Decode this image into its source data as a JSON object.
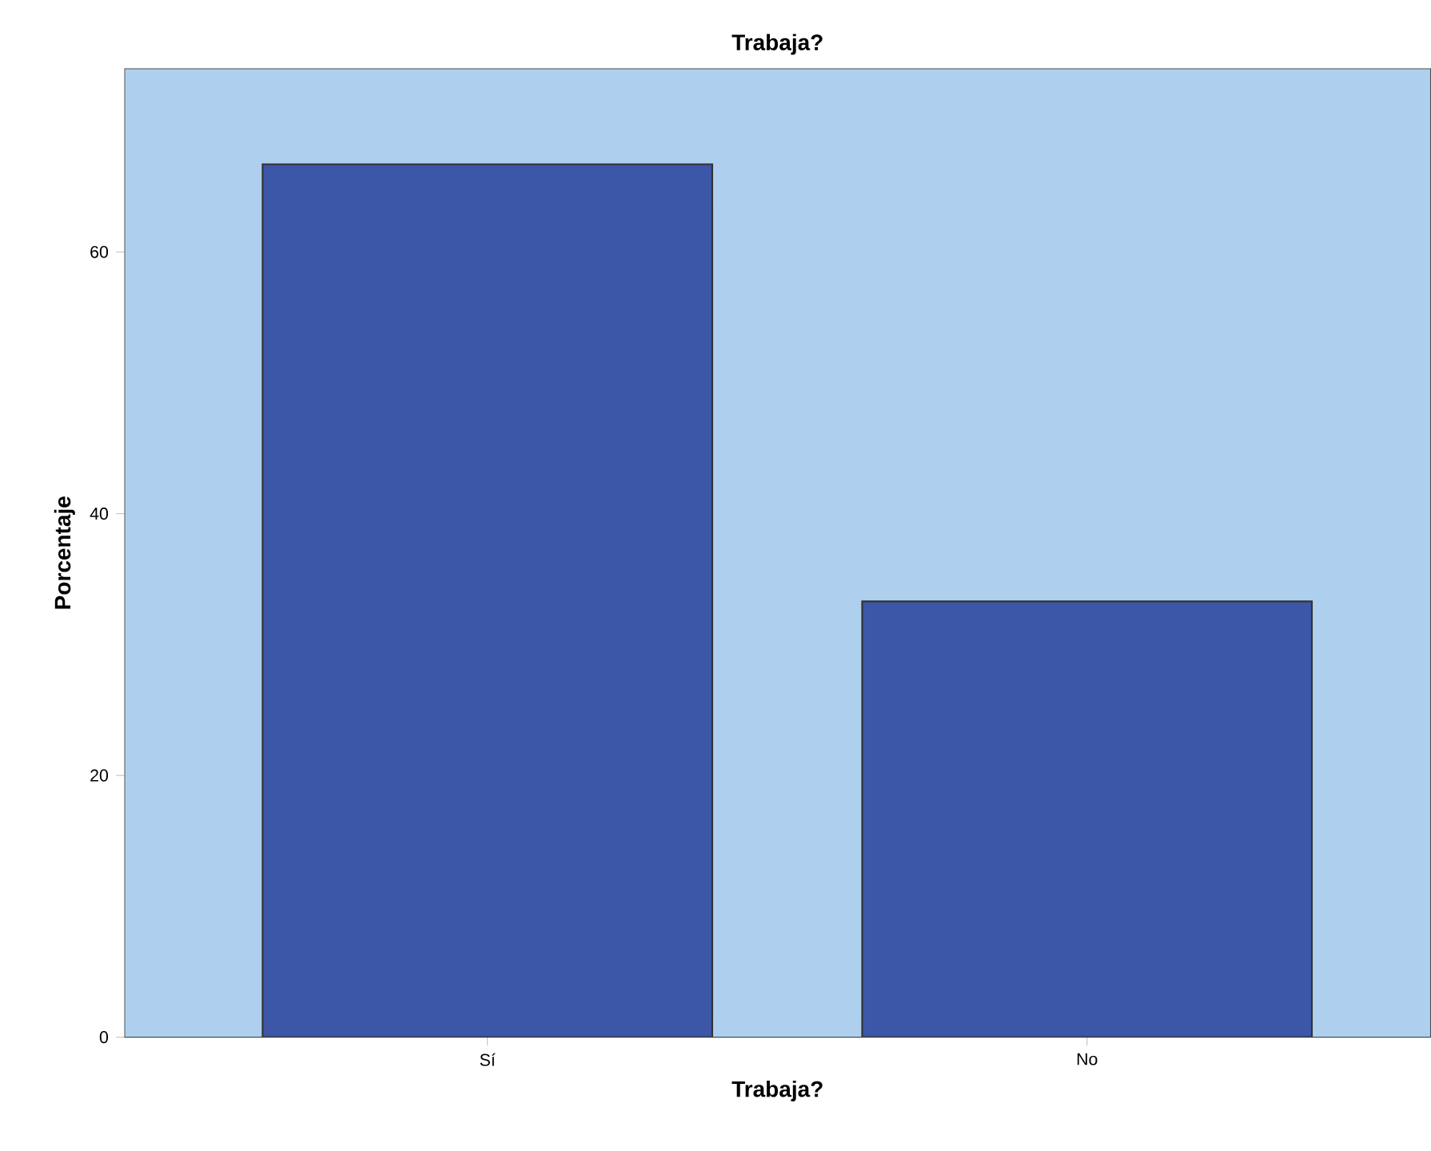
{
  "chart_data": {
    "type": "bar",
    "title": "Trabaja?",
    "xlabel": "Trabaja?",
    "ylabel": "Porcentaje",
    "categories": [
      "Sí",
      "No"
    ],
    "values": [
      66.7,
      33.3
    ],
    "color": "#3c56a8",
    "ylim": [
      0,
      74
    ],
    "yticks": [
      0,
      20,
      40,
      60
    ],
    "grid": false
  }
}
